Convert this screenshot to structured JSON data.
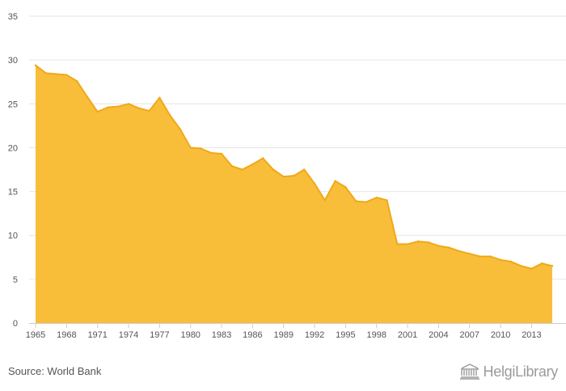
{
  "chart_data": {
    "type": "area",
    "x": [
      1965,
      1966,
      1967,
      1968,
      1969,
      1970,
      1971,
      1972,
      1973,
      1974,
      1975,
      1976,
      1977,
      1978,
      1979,
      1980,
      1981,
      1982,
      1983,
      1984,
      1985,
      1986,
      1987,
      1988,
      1989,
      1990,
      1991,
      1992,
      1993,
      1994,
      1995,
      1996,
      1997,
      1998,
      1999,
      2000,
      2001,
      2002,
      2003,
      2004,
      2005,
      2006,
      2007,
      2008,
      2009,
      2010,
      2011,
      2012,
      2013,
      2014,
      2015
    ],
    "values": [
      29.4,
      28.5,
      28.4,
      28.3,
      27.6,
      25.8,
      24.1,
      24.6,
      24.7,
      25.0,
      24.5,
      24.2,
      25.7,
      23.7,
      22.1,
      20.0,
      19.9,
      19.4,
      19.3,
      17.9,
      17.5,
      18.1,
      18.8,
      17.5,
      16.7,
      16.8,
      17.5,
      15.9,
      14.0,
      16.2,
      15.5,
      13.9,
      13.8,
      14.3,
      14.0,
      9.0,
      9.0,
      9.3,
      9.2,
      8.8,
      8.6,
      8.2,
      7.9,
      7.6,
      7.6,
      7.2,
      7.0,
      6.5,
      6.2,
      6.8,
      6.5
    ],
    "x_tick_labels": [
      "1965",
      "1968",
      "1971",
      "1974",
      "1977",
      "1980",
      "1983",
      "1986",
      "1989",
      "1992",
      "1995",
      "1998",
      "2001",
      "2004",
      "2007",
      "2010",
      "2013"
    ],
    "y_ticks": [
      0,
      5,
      10,
      15,
      20,
      25,
      30,
      35
    ],
    "ylim": [
      0,
      35
    ],
    "xlim": [
      1965,
      2015
    ],
    "grid": true,
    "colors": {
      "fill": "#F8BE3A",
      "line": "#F0A818",
      "grid": "#E6E6E6",
      "axis": "#CCCCCC"
    },
    "title": "",
    "xlabel": "",
    "ylabel": ""
  },
  "footer": {
    "source": "Source: World Bank",
    "brand": "HelgiLibrary",
    "brand_icon": "library-building-icon"
  }
}
